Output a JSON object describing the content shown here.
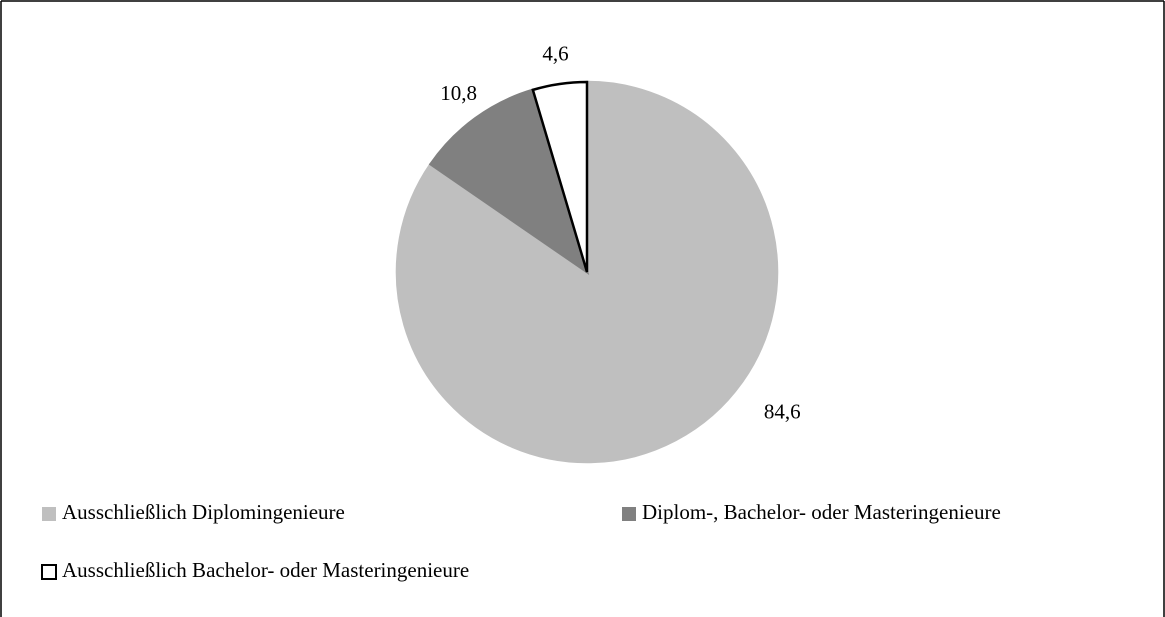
{
  "chart_data": {
    "type": "pie",
    "categories": [
      "Ausschließlich Diplomingenieure",
      "Diplom-, Bachelor- oder Masteringenieure",
      "Ausschließlich Bachelor- oder Masteringenieure"
    ],
    "values": [
      84.6,
      10.8,
      4.6
    ],
    "value_labels": [
      "84,6",
      "10,8",
      "4,6"
    ],
    "colors": [
      "#bfbfbf",
      "#808080",
      "#ffffff"
    ]
  }
}
